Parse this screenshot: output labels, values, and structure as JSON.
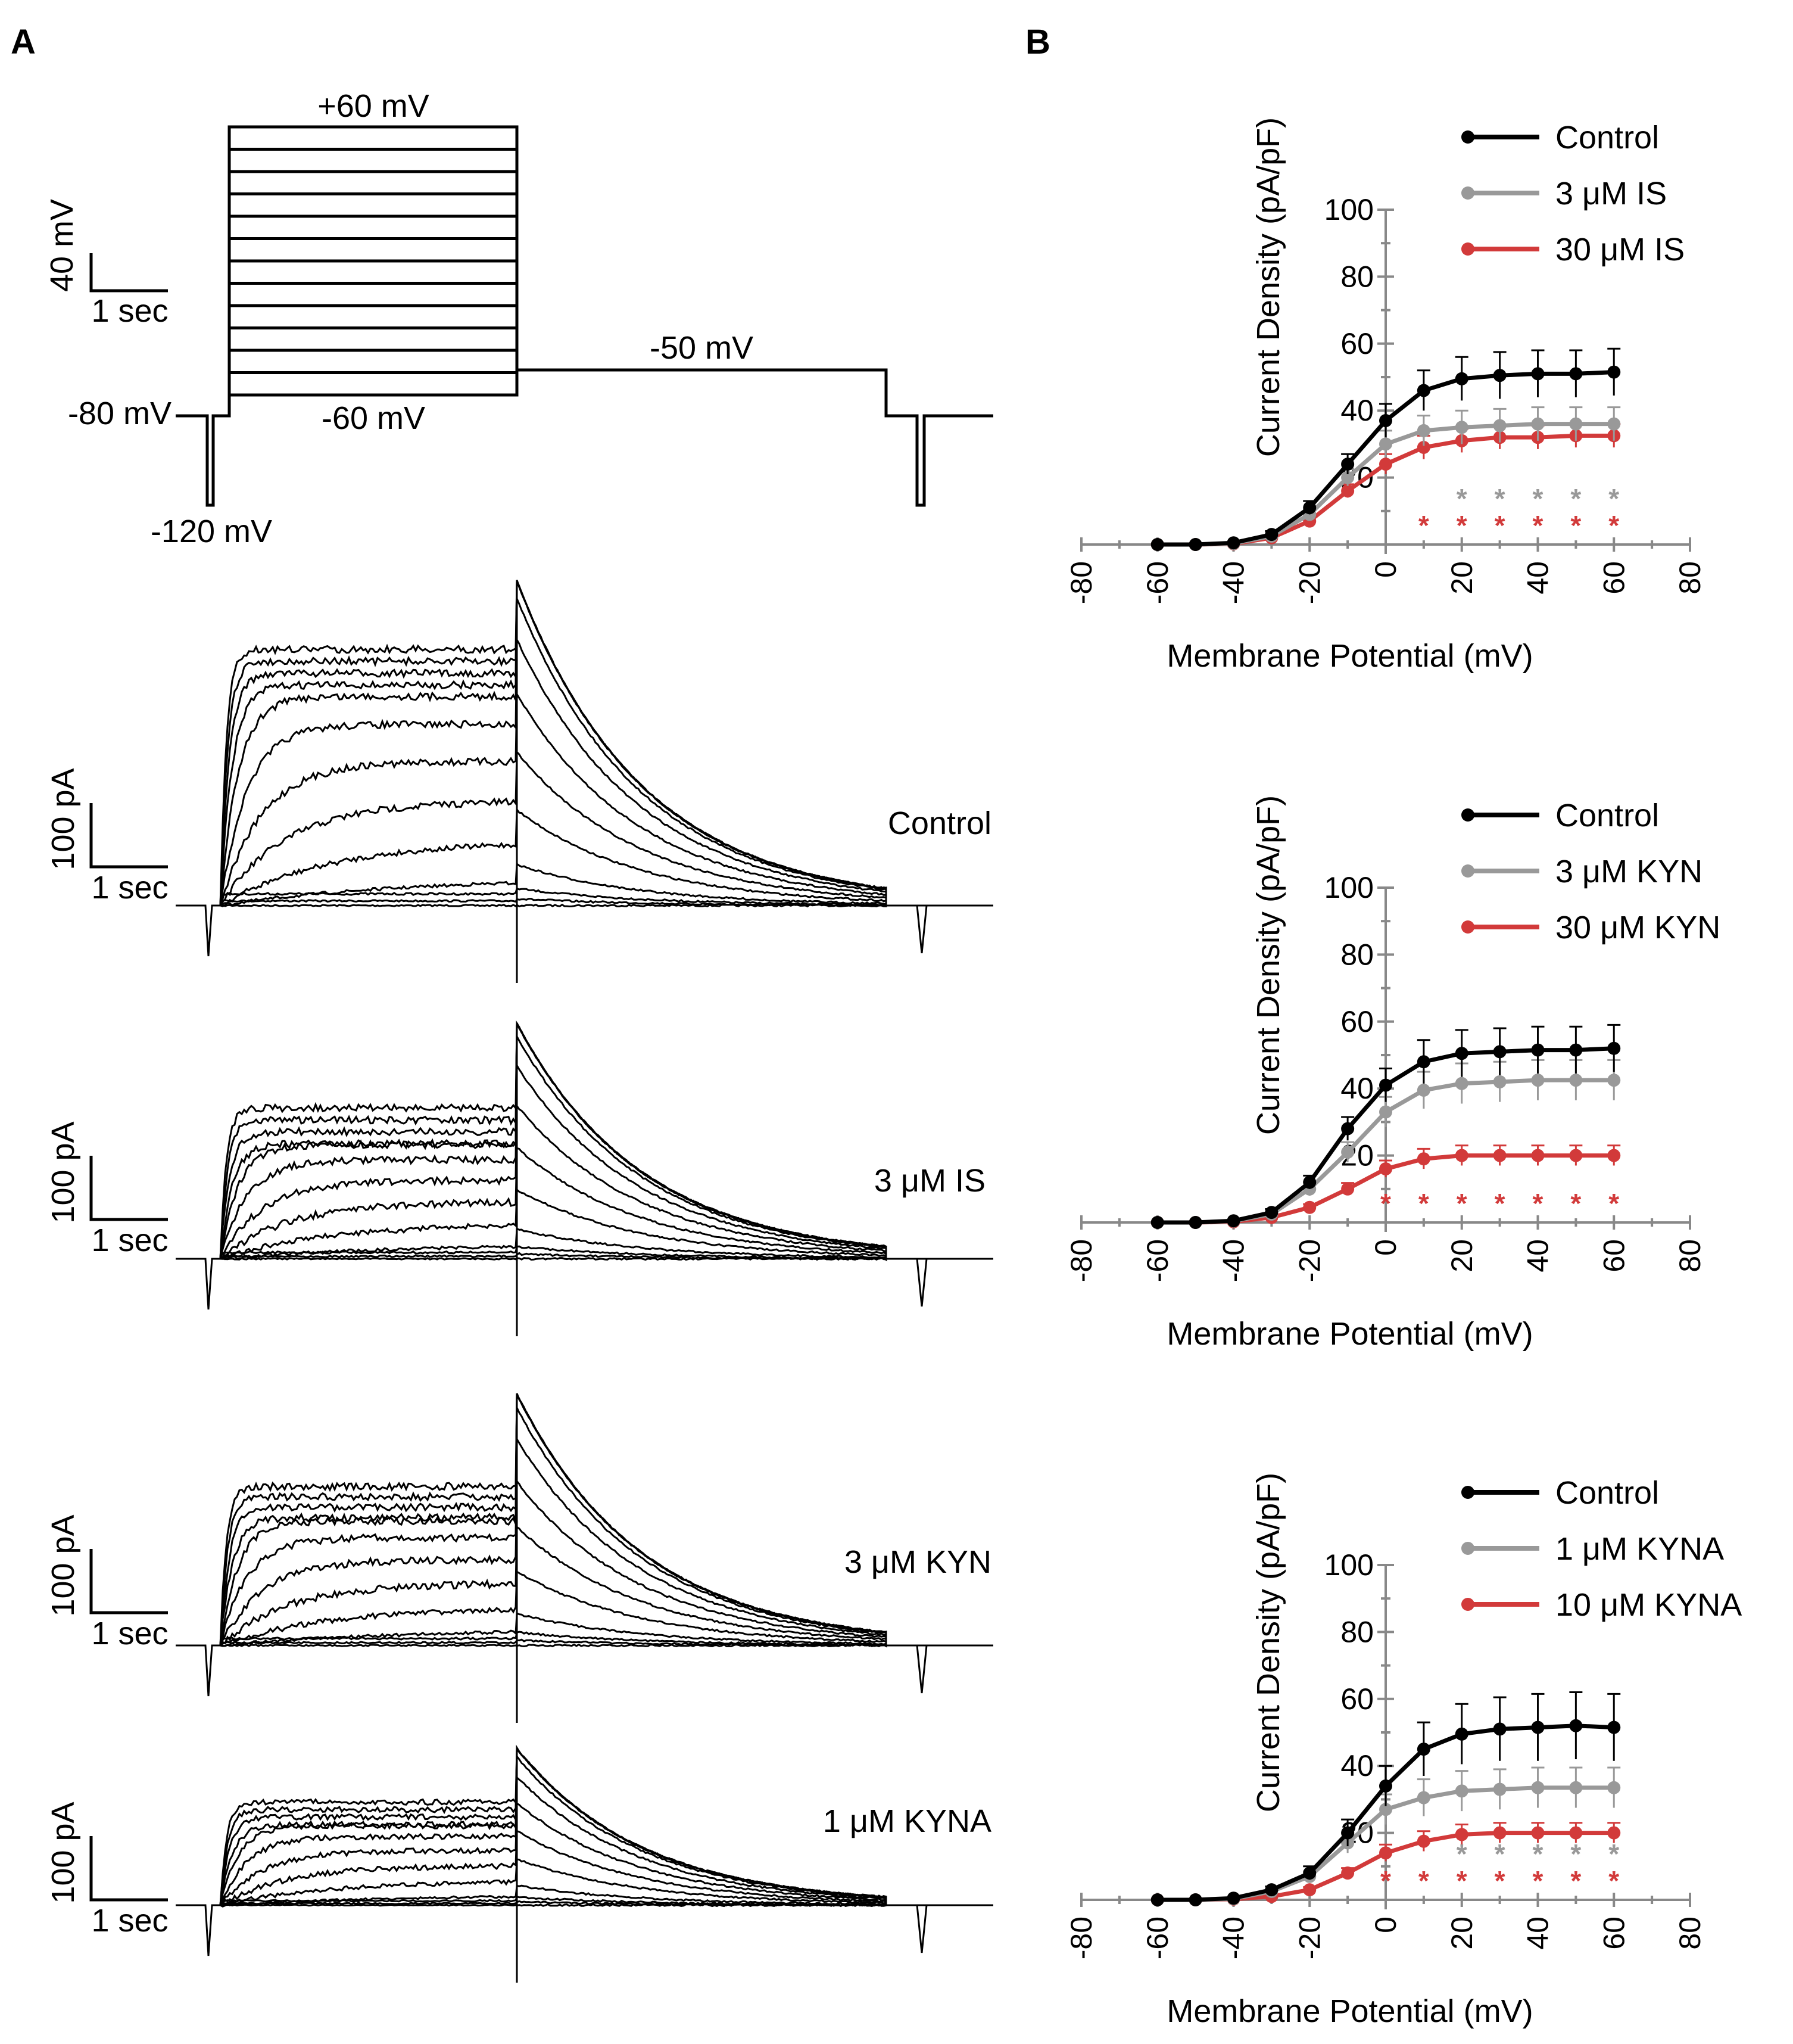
{
  "panels": {
    "a": "A",
    "b": "B"
  },
  "protocol": {
    "top_label": "+60 mV",
    "step_bottom_label": "-60 mV",
    "tail_label": "-50 mV",
    "hold_label": "-80 mV",
    "prepulse_label": "-120 mV",
    "scalebar_v": "40 mV",
    "scalebar_t": "1 sec"
  },
  "traces": [
    {
      "label": "Control",
      "scale_i": "100 pA",
      "scale_t": "1 sec"
    },
    {
      "label": "3 μM IS",
      "scale_i": "100 pA",
      "scale_t": "1 sec"
    },
    {
      "label": "3 μM KYN",
      "scale_i": "100 pA",
      "scale_t": "1 sec"
    },
    {
      "label": "1 μM KYNA",
      "scale_i": "100 pA",
      "scale_t": "1 sec"
    }
  ],
  "colors": {
    "control": "#000000",
    "low": "#999999",
    "high": "#d23a3a"
  },
  "chart_data": [
    {
      "type": "line",
      "xlabel": "Membrane Potential (mV)",
      "ylabel": "Current Density (pA/pF)",
      "xlim": [
        -80,
        80
      ],
      "ylim": [
        0,
        100
      ],
      "xticks": [
        "-80",
        "-60",
        "-40",
        "-20",
        "0",
        "20",
        "40",
        "60",
        "80"
      ],
      "yticks": [
        "20",
        "40",
        "60",
        "80",
        "100"
      ],
      "x": [
        -60,
        -50,
        -40,
        -30,
        -20,
        -10,
        0,
        10,
        20,
        30,
        40,
        50,
        60
      ],
      "series": [
        {
          "name": "Control",
          "color": "#000000",
          "values": [
            0,
            0,
            0.5,
            3,
            11,
            24,
            37,
            46,
            49.5,
            50.5,
            51,
            51,
            51.5
          ],
          "errors": [
            0,
            0,
            0.3,
            1,
            2,
            3,
            5,
            6,
            6.5,
            7,
            7,
            7,
            7
          ]
        },
        {
          "name": "3 μM IS",
          "color": "#999999",
          "values": [
            0,
            0,
            0.3,
            2.5,
            9,
            20,
            30,
            34,
            35,
            35.5,
            36,
            36,
            36
          ],
          "errors": [
            0,
            0,
            0.2,
            0.8,
            1.5,
            2.5,
            4,
            4.5,
            5,
            5,
            5,
            5,
            5
          ]
        },
        {
          "name": "30 μM IS",
          "color": "#d23a3a",
          "values": [
            0,
            0,
            0.2,
            2,
            7,
            16,
            24,
            29,
            31,
            32,
            32,
            32.5,
            32.5
          ],
          "errors": [
            0,
            0,
            0.2,
            0.6,
            1.5,
            2,
            3,
            3.5,
            3.5,
            3.5,
            3.5,
            3.5,
            3.5
          ]
        }
      ],
      "significance": [
        {
          "series": "3 μM IS",
          "symbol": "*",
          "x": [
            20,
            30,
            40,
            50,
            60
          ]
        },
        {
          "series": "30 μM IS",
          "symbol": "*",
          "x": [
            10,
            20,
            30,
            40,
            50,
            60
          ]
        }
      ]
    },
    {
      "type": "line",
      "xlabel": "Membrane Potential (mV)",
      "ylabel": "Current Density (pA/pF)",
      "xlim": [
        -80,
        80
      ],
      "ylim": [
        0,
        100
      ],
      "xticks": [
        "-80",
        "-60",
        "-40",
        "-20",
        "0",
        "20",
        "40",
        "60",
        "80"
      ],
      "yticks": [
        "20",
        "40",
        "60",
        "80",
        "100"
      ],
      "x": [
        -60,
        -50,
        -40,
        -30,
        -20,
        -10,
        0,
        10,
        20,
        30,
        40,
        50,
        60
      ],
      "series": [
        {
          "name": "Control",
          "color": "#000000",
          "values": [
            0,
            0,
            0.5,
            3,
            12,
            28,
            41,
            48,
            50.5,
            51,
            51.5,
            51.5,
            52
          ],
          "errors": [
            0,
            0,
            0.3,
            1,
            2,
            3.5,
            5,
            6.5,
            7,
            7,
            7,
            7,
            7
          ]
        },
        {
          "name": "3 μM KYN",
          "color": "#999999",
          "values": [
            0,
            0,
            0.4,
            2.5,
            10,
            21,
            33,
            39.5,
            41.5,
            42,
            42.5,
            42.5,
            42.5
          ],
          "errors": [
            0,
            0,
            0.3,
            0.8,
            2,
            3,
            4.5,
            5.5,
            6,
            6,
            6,
            6,
            6
          ]
        },
        {
          "name": "30 μM KYN",
          "color": "#d23a3a",
          "values": [
            0,
            0,
            0.2,
            1.5,
            4.5,
            10,
            16,
            19,
            20,
            20,
            20,
            20,
            20
          ],
          "errors": [
            0,
            0,
            0.2,
            0.5,
            1,
            1.8,
            2.5,
            3,
            3,
            3,
            3,
            3,
            3
          ]
        }
      ],
      "significance": [
        {
          "series": "30 μM KYN",
          "symbol": "*",
          "x": [
            0,
            10,
            20,
            30,
            40,
            50,
            60
          ]
        }
      ]
    },
    {
      "type": "line",
      "xlabel": "Membrane Potential (mV)",
      "ylabel": "Current Density (pA/pF)",
      "xlim": [
        -80,
        80
      ],
      "ylim": [
        0,
        100
      ],
      "xticks": [
        "-80",
        "-60",
        "-40",
        "-20",
        "0",
        "20",
        "40",
        "60",
        "80"
      ],
      "yticks": [
        "20",
        "40",
        "60",
        "80",
        "100"
      ],
      "x": [
        -60,
        -50,
        -40,
        -30,
        -20,
        -10,
        0,
        10,
        20,
        30,
        40,
        50,
        60
      ],
      "series": [
        {
          "name": "Control",
          "color": "#000000",
          "values": [
            0,
            0,
            0.5,
            3,
            8,
            20,
            34,
            45,
            49.5,
            51,
            51.5,
            52,
            51.5
          ],
          "errors": [
            0,
            0,
            0.3,
            1,
            2,
            4,
            6,
            8,
            9,
            9.5,
            10,
            10,
            10
          ]
        },
        {
          "name": "1 μM KYNA",
          "color": "#999999",
          "values": [
            0,
            0,
            0.3,
            2.5,
            7,
            17,
            27,
            30.5,
            32.5,
            33,
            33.5,
            33.5,
            33.5
          ],
          "errors": [
            0,
            0,
            0.2,
            0.8,
            1.5,
            3,
            4.5,
            5.5,
            6,
            6,
            6,
            6,
            6
          ]
        },
        {
          "name": "10 μM KYNA",
          "color": "#d23a3a",
          "values": [
            0,
            0,
            0.2,
            1,
            3,
            8,
            14,
            17.5,
            19.5,
            20,
            20,
            20,
            20
          ],
          "errors": [
            0,
            0,
            0.2,
            0.4,
            0.8,
            1.5,
            2.5,
            3,
            3,
            3,
            3,
            3,
            3
          ]
        }
      ],
      "significance": [
        {
          "series": "1 μM KYNA",
          "symbol": "*",
          "x": [
            20,
            30,
            40,
            50,
            60
          ]
        },
        {
          "series": "10 μM KYNA",
          "symbol": "*",
          "x": [
            0,
            10,
            20,
            30,
            40,
            50,
            60
          ]
        }
      ]
    }
  ]
}
